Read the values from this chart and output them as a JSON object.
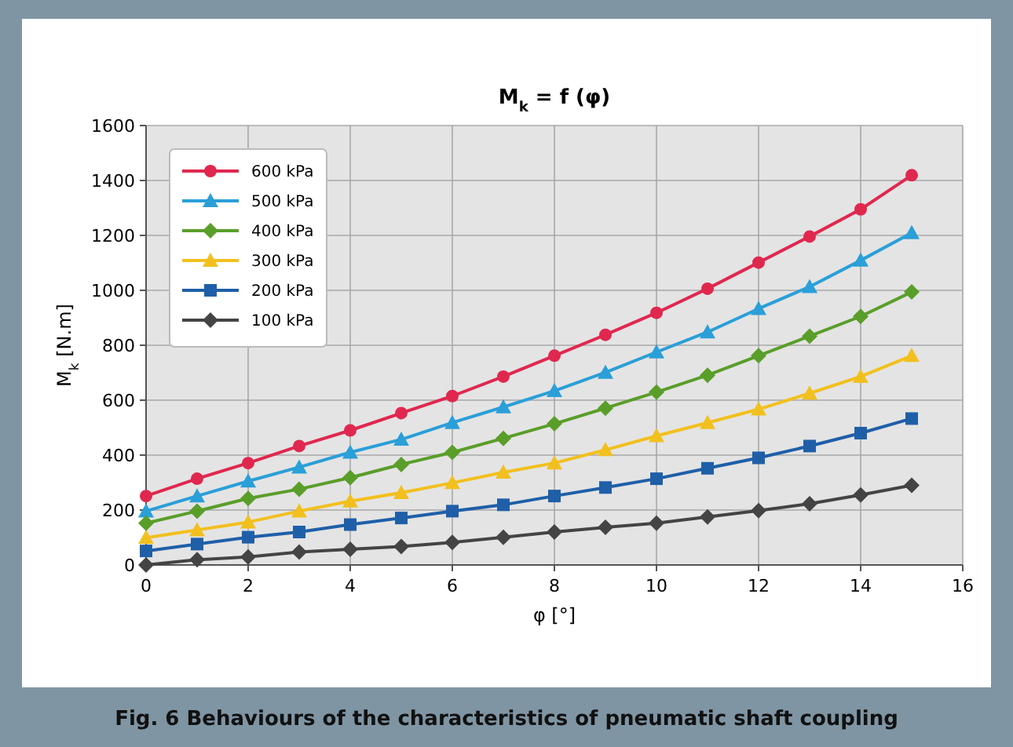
{
  "chart_data": {
    "type": "line",
    "title": "M$_{k}$ = f (φ)",
    "xlabel": "φ [°]",
    "ylabel": "M$_{k}$ [N.m]",
    "x": [
      0,
      1,
      2,
      3,
      4,
      5,
      6,
      7,
      8,
      9,
      10,
      11,
      12,
      13,
      14,
      15
    ],
    "series": [
      {
        "name": "600 kPa",
        "color": "#e0284f",
        "marker": "circle",
        "values": [
          251,
          314,
          371,
          433,
          490,
          553,
          615,
          686,
          762,
          838,
          918,
          1006,
          1101,
          1196,
          1295,
          1419
        ]
      },
      {
        "name": "500 kPa",
        "color": "#2a9fd8",
        "marker": "triangle",
        "values": [
          196,
          251,
          305,
          356,
          410,
          457,
          518,
          575,
          634,
          701,
          775,
          848,
          933,
          1013,
          1109,
          1209
        ]
      },
      {
        "name": "400 kPa",
        "color": "#5a9e2a",
        "marker": "diamond",
        "values": [
          152,
          196,
          242,
          276,
          318,
          366,
          410,
          461,
          514,
          571,
          629,
          691,
          762,
          833,
          905,
          994
        ]
      },
      {
        "name": "300 kPa",
        "color": "#f2c01e",
        "marker": "triangle",
        "values": [
          99,
          127,
          156,
          196,
          232,
          263,
          299,
          337,
          371,
          419,
          470,
          518,
          567,
          625,
          686,
          762
        ]
      },
      {
        "name": "200 kPa",
        "color": "#1f5fa8",
        "marker": "square",
        "values": [
          51,
          76,
          101,
          120,
          147,
          171,
          196,
          219,
          251,
          282,
          314,
          352,
          390,
          433,
          480,
          533
        ]
      },
      {
        "name": "100 kPa",
        "color": "#444444",
        "marker": "diamond",
        "values": [
          0,
          19,
          29,
          47,
          57,
          67,
          82,
          101,
          120,
          137,
          152,
          175,
          198,
          223,
          255,
          290
        ]
      }
    ],
    "xlim": [
      0,
      16
    ],
    "xticks": [
      0,
      2,
      4,
      6,
      8,
      10,
      12,
      14,
      16
    ],
    "ylim": [
      0,
      1600
    ],
    "yticks": [
      0,
      200,
      400,
      600,
      800,
      1000,
      1200,
      1400,
      1600
    ],
    "grid": true,
    "legend": "top left",
    "line_style": "solid",
    "annotations": [
      "Fig. 6 Behaviours of the characteristics of pneumatic shaft coupling"
    ]
  }
}
